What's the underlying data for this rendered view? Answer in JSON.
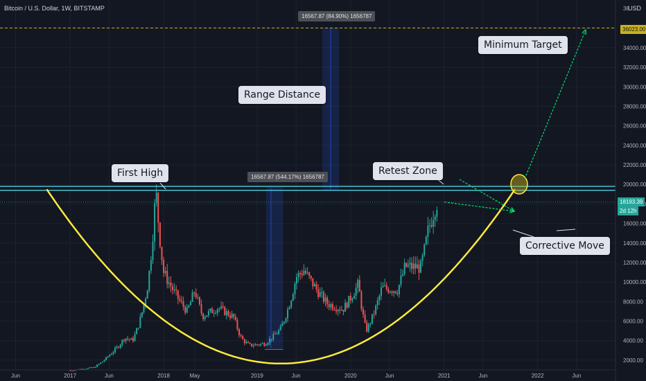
{
  "header": {
    "symbol_title": "Bitcoin / U.S. Dollar, 1W, BITSTAMP",
    "currency_label": "USD"
  },
  "annotations": {
    "first_high": "First High",
    "range_distance": "Range Distance",
    "minimum_target": "Minimum Target",
    "retest_zone": "Retest Zone",
    "corrective_move": "Corrective Move",
    "measure_main": "16567.87 (544.17%) 1656787",
    "measure_projection": "16567.87 (84.90%) 1656787"
  },
  "price_tags": {
    "target": "36023.00",
    "current": "18193.39",
    "countdown": "2d 12h"
  },
  "colors": {
    "background": "#131722",
    "up": "#26a69a",
    "down": "#ef5350",
    "cup": "#ffeb3b",
    "arrow": "#00e676",
    "resistance": "#4dd0e1",
    "target_line": "#c9b21c",
    "grid": "#1e222d",
    "axis_text": "#b2b5be"
  },
  "chart_data": {
    "type": "candlestick",
    "title": "Bitcoin / U.S. Dollar, 1W, BITSTAMP",
    "y_axis": {
      "scale": "linear",
      "ylim": [
        1500,
        38000
      ],
      "ticks": [
        2000,
        4000,
        6000,
        8000,
        10000,
        12000,
        14000,
        16000,
        18000,
        20000,
        22000,
        24000,
        26000,
        28000,
        30000,
        32000,
        34000,
        36000
      ],
      "tick_labels": [
        "2000.00",
        "4000.00",
        "6000.00",
        "8000.00",
        "10000.00",
        "12000.00",
        "14000.00",
        "16000.00",
        "18000.00",
        "20000.00",
        "22000.00",
        "24000.00",
        "26000.00",
        "28000.00",
        "30000.00",
        "32000.00",
        "34000.00",
        "36000.00"
      ],
      "top_tick_label": "38"
    },
    "x_axis": {
      "start": "2016-04",
      "end": "2022-11",
      "ticks": [
        {
          "date": "2016-06",
          "label": "Jun"
        },
        {
          "date": "2017-01",
          "label": "2017"
        },
        {
          "date": "2017-06",
          "label": "Jun"
        },
        {
          "date": "2018-01",
          "label": "2018"
        },
        {
          "date": "2018-05",
          "label": "May"
        },
        {
          "date": "2019-01",
          "label": "2019"
        },
        {
          "date": "2019-06",
          "label": "Jun"
        },
        {
          "date": "2020-01",
          "label": "2020"
        },
        {
          "date": "2020-06",
          "label": "Jun"
        },
        {
          "date": "2021-01",
          "label": "2021"
        },
        {
          "date": "2021-06",
          "label": "Jun"
        },
        {
          "date": "2022-01",
          "label": "2022"
        },
        {
          "date": "2022-06",
          "label": "Jun"
        }
      ]
    },
    "key_points": [
      {
        "date": "2017-01",
        "close": 950
      },
      {
        "date": "2017-04",
        "close": 1250
      },
      {
        "date": "2017-06",
        "close": 2500
      },
      {
        "date": "2017-08",
        "close": 4300
      },
      {
        "date": "2017-09",
        "close": 4000
      },
      {
        "date": "2017-10",
        "close": 6200
      },
      {
        "date": "2017-11",
        "close": 9900
      },
      {
        "date": "2017-12",
        "close": 19500
      },
      {
        "date": "2018-01",
        "close": 11000
      },
      {
        "date": "2018-02",
        "close": 9500
      },
      {
        "date": "2018-04",
        "close": 7000
      },
      {
        "date": "2018-05",
        "close": 9200
      },
      {
        "date": "2018-06",
        "close": 6500
      },
      {
        "date": "2018-08",
        "close": 7400
      },
      {
        "date": "2018-10",
        "close": 6400
      },
      {
        "date": "2018-11",
        "close": 4200
      },
      {
        "date": "2018-12",
        "close": 3500
      },
      {
        "date": "2019-02",
        "close": 3700
      },
      {
        "date": "2019-04",
        "close": 5200
      },
      {
        "date": "2019-06",
        "close": 10500
      },
      {
        "date": "2019-07",
        "close": 11200
      },
      {
        "date": "2019-08",
        "close": 10000
      },
      {
        "date": "2019-10",
        "close": 7800
      },
      {
        "date": "2019-12",
        "close": 7200
      },
      {
        "date": "2020-02",
        "close": 9800
      },
      {
        "date": "2020-03",
        "close": 5000
      },
      {
        "date": "2020-05",
        "close": 9400
      },
      {
        "date": "2020-07",
        "close": 9200
      },
      {
        "date": "2020-08",
        "close": 11600
      },
      {
        "date": "2020-10",
        "close": 11500
      },
      {
        "date": "2020-11",
        "close": 15500
      },
      {
        "date": "2020-12",
        "close": 18193.39
      }
    ],
    "levels": {
      "resistance": [
        19400,
        19800
      ],
      "current_price": 18193.39,
      "target": 36023.0,
      "range_distance": 16567.87
    }
  }
}
